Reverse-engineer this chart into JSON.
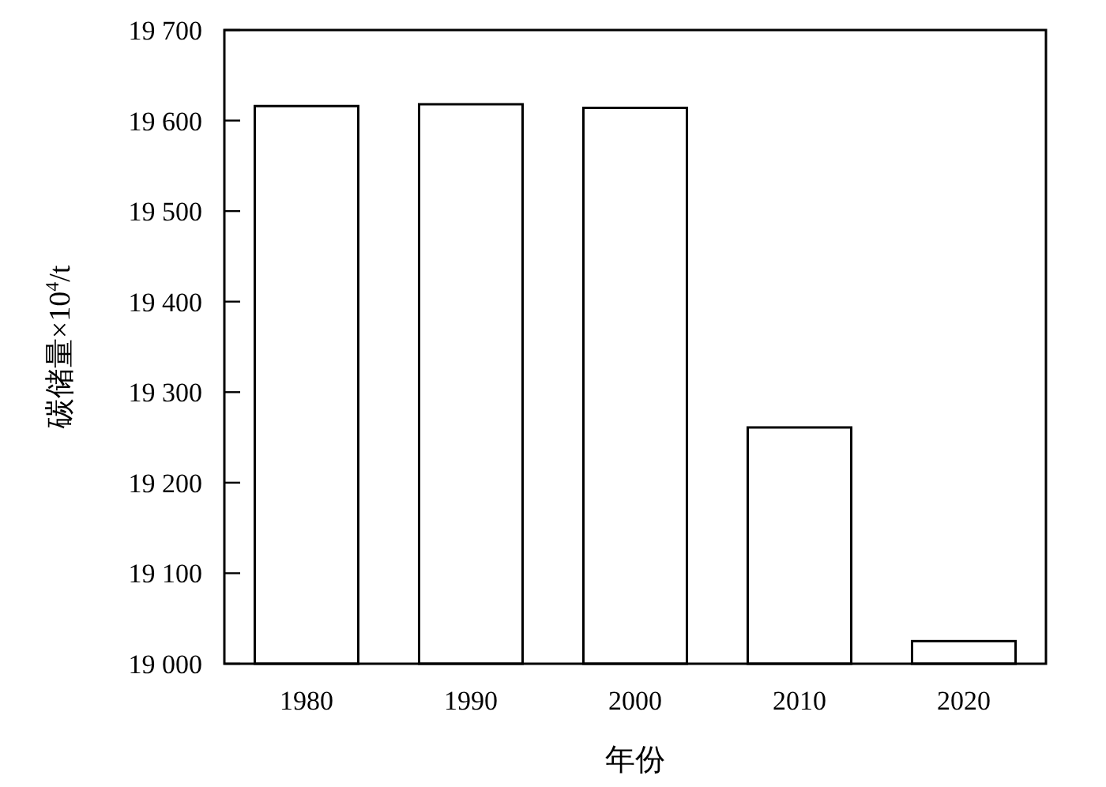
{
  "chart_data": {
    "type": "bar",
    "xlabel": "年份",
    "ylabel": "碳储量×10$^{4}$/t",
    "categories": [
      "1980",
      "1990",
      "2000",
      "2010",
      "2020"
    ],
    "values": [
      19616,
      19618,
      19614,
      19261,
      19025
    ],
    "color": "#ffffff",
    "ylim": [
      19000,
      19700
    ],
    "yticks": [
      {
        "value": 19000,
        "label": "19 000"
      },
      {
        "value": 19100,
        "label": "19 100"
      },
      {
        "value": 19200,
        "label": "19 200"
      },
      {
        "value": 19300,
        "label": "19 300"
      },
      {
        "value": 19400,
        "label": "19 400"
      },
      {
        "value": 19500,
        "label": "19 500"
      },
      {
        "value": 19600,
        "label": "19 600"
      },
      {
        "value": 19700,
        "label": "19 700"
      }
    ],
    "grid": false
  }
}
